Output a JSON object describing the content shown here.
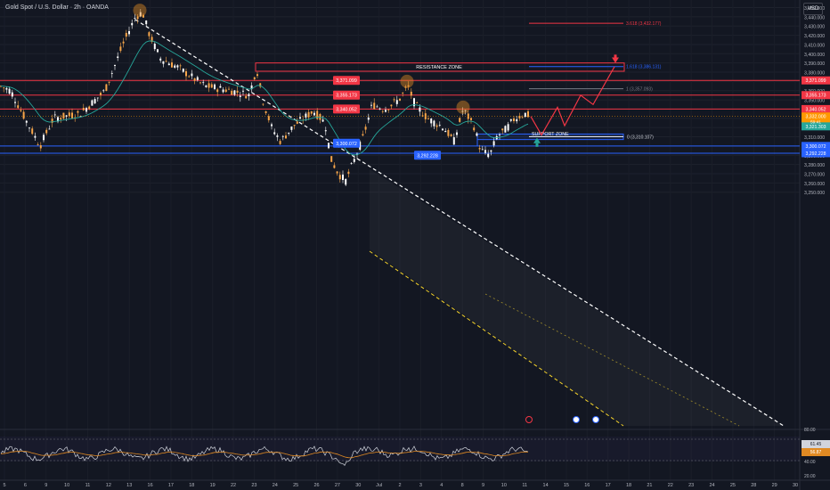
{
  "header": {
    "symbol_title": "Gold Spot / U.S. Dollar · 2h · OANDA",
    "currency": "USD"
  },
  "colors": {
    "background": "#131722",
    "up": "#f7a64a",
    "down": "#ffffff",
    "resistance": "#f23645",
    "support": "#2962ff",
    "ema": "#26a69a",
    "rsi": "#d1d4dc",
    "rsi_ma": "#e08a23",
    "trendline": "#ffffff",
    "channel_lower": "#f5d32b"
  },
  "chart_data": {
    "type": "candlestick",
    "ylim": [
      3240,
      3460
    ],
    "y_ticks": [
      "3,450.000",
      "3,440.000",
      "3,430.000",
      "3,420.000",
      "3,410.000",
      "3,400.000",
      "3,390.000",
      "3,380.000",
      "3,370.000",
      "3,360.000",
      "3,350.000",
      "3,340.000",
      "3,330.000",
      "3,320.000",
      "3,310.000",
      "3,300.000",
      "3,290.000",
      "3,280.000",
      "3,270.000",
      "3,260.000",
      "3,250.000"
    ],
    "x_ticks": [
      "5",
      "6",
      "9",
      "10",
      "11",
      "12",
      "13",
      "16",
      "17",
      "18",
      "19",
      "22",
      "23",
      "24",
      "25",
      "26",
      "27",
      "30",
      "Jul",
      "2",
      "3",
      "4",
      "8",
      "9",
      "10",
      "11",
      "14",
      "15",
      "16",
      "17",
      "18",
      "21",
      "22",
      "23",
      "24",
      "25",
      "28",
      "29",
      "30"
    ],
    "price_tags": [
      {
        "label": "3,371.099",
        "value": 3371.1,
        "color": "#f23645"
      },
      {
        "label": "3,355.173",
        "value": 3355.17,
        "color": "#f23645"
      },
      {
        "label": "3,340.052",
        "value": 3340.05,
        "color": "#f23645"
      },
      {
        "label": "3,300.072",
        "value": 3300.07,
        "color": "#2962ff"
      },
      {
        "label": "3,292.228",
        "value": 3292.23,
        "color": "#2962ff"
      }
    ],
    "levels": [
      {
        "value": 3371.1,
        "color": "#f23645"
      },
      {
        "value": 3355.17,
        "color": "#f23645"
      },
      {
        "value": 3340.05,
        "color": "#f23645"
      },
      {
        "value": 3300.07,
        "color": "#2962ff"
      },
      {
        "value": 3292.23,
        "color": "#2962ff"
      }
    ],
    "axis_badges": [
      {
        "label": "3,371.099",
        "value": 3371.1,
        "color": "#f23645"
      },
      {
        "label": "3,355.173",
        "value": 3355.17,
        "color": "#f23645"
      },
      {
        "label": "3,340.052",
        "value": 3340.05,
        "color": "#f23645"
      },
      {
        "label": "3,332.000",
        "value": 3332.0,
        "color": "#ff9800"
      },
      {
        "label": "3,321.303",
        "value": 3321.3,
        "color": "#26a69a"
      },
      {
        "label": "3,300.072",
        "value": 3300.07,
        "color": "#2962ff"
      },
      {
        "label": "3,292.228",
        "value": 3292.23,
        "color": "#2962ff"
      }
    ],
    "zones": {
      "resistance_label": "RESISTANCE ZONE",
      "resistance_range": [
        3381,
        3390
      ],
      "support_label": "SUPPORT ZONE",
      "support_range": [
        3307,
        3313
      ]
    },
    "fib_labels": [
      {
        "label": "3.618 (3,432.177)",
        "value": 3433
      },
      {
        "label": "1.618 (3,386.131)",
        "value": 3386.1
      },
      {
        "label": "1 (3,357.093)",
        "value": 3362
      },
      {
        "label": "0 (3,310.107)",
        "value": 3310.1
      }
    ],
    "current_price_label": "3,332.000",
    "current_price_sublabel": "59:41",
    "rsi": {
      "value_labels": [
        "61.45",
        "56.87"
      ],
      "levels": [
        "80.00",
        "40.00",
        "20.00"
      ]
    }
  }
}
